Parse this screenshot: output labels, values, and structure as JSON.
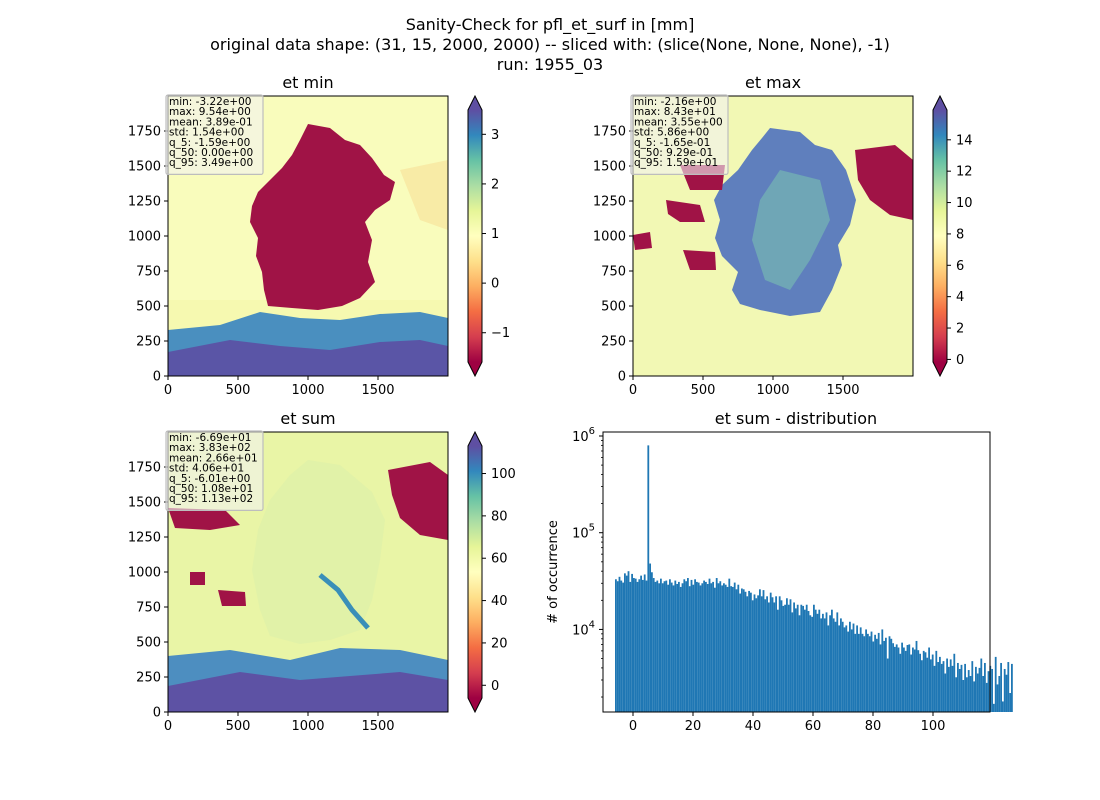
{
  "figure": {
    "suptitle_lines": [
      "Sanity-Check for pfl_et_surf in [mm]",
      "original data shape: (31, 15, 2000, 2000) -- sliced with: (slice(None, None, None), -1)",
      "run: 1955_03"
    ]
  },
  "colors": {
    "histogram_bar": "#1f77b4",
    "stats_box_bg": "#f2f2f2",
    "colormap": "Spectral",
    "colormap_stops": [
      "#9e0142",
      "#d53e4f",
      "#f46d43",
      "#fdae61",
      "#fee08b",
      "#ffffbf",
      "#e6f598",
      "#abdda4",
      "#66c2a5",
      "#3288bd",
      "#5e4fa2"
    ],
    "nan_color": "#ffffff"
  },
  "chart_data": [
    {
      "type": "heatmap",
      "title": "et min",
      "xlim": [
        0,
        2000
      ],
      "ylim": [
        0,
        2000
      ],
      "xticks": [
        0,
        500,
        1000,
        1500
      ],
      "yticks": [
        0,
        250,
        500,
        750,
        1000,
        1250,
        1500,
        1750
      ],
      "colorbar": {
        "vmin": -1.59,
        "vmax": 3.49,
        "ticks": [
          -1,
          0,
          1,
          2,
          3
        ],
        "extend": "both"
      },
      "stats": [
        "min: -3.22e+00",
        "max: 9.54e+00",
        "mean: 3.89e-01",
        "std: 1.54e+00",
        "q_5: -1.59e+00",
        "q_50: 0.00e+00",
        "q_95: 3.49e+00"
      ]
    },
    {
      "type": "heatmap",
      "title": "et max",
      "xlim": [
        0,
        2000
      ],
      "ylim": [
        0,
        2000
      ],
      "xticks": [
        0,
        500,
        1000,
        1500
      ],
      "yticks": [
        0,
        250,
        500,
        750,
        1000,
        1250,
        1500,
        1750
      ],
      "colorbar": {
        "vmin": -0.165,
        "vmax": 15.9,
        "ticks": [
          0,
          2,
          4,
          6,
          8,
          10,
          12,
          14
        ],
        "extend": "both"
      },
      "stats": [
        "min: -2.16e+00",
        "max: 8.43e+01",
        "mean: 3.55e+00",
        "std: 5.86e+00",
        "q_5: -1.65e-01",
        "q_50: 9.29e-01",
        "q_95: 1.59e+01"
      ]
    },
    {
      "type": "heatmap",
      "title": "et sum",
      "xlim": [
        0,
        2000
      ],
      "ylim": [
        0,
        2000
      ],
      "xticks": [
        0,
        500,
        1000,
        1500
      ],
      "yticks": [
        0,
        250,
        500,
        750,
        1000,
        1250,
        1500,
        1750
      ],
      "colorbar": {
        "vmin": -6.01,
        "vmax": 113,
        "ticks": [
          0,
          20,
          40,
          60,
          80,
          100
        ],
        "extend": "both"
      },
      "stats": [
        "min: -6.69e+01",
        "max: 3.83e+02",
        "mean: 2.66e+01",
        "std: 4.06e+01",
        "q_5: -6.01e+00",
        "q_50: 1.08e+01",
        "q_95: 1.13e+02"
      ]
    },
    {
      "type": "bar",
      "title": "et sum - distribution",
      "ylabel": "# of occurrence",
      "yscale": "log",
      "xlim": [
        -10,
        119
      ],
      "ylim": [
        1400,
        1100000
      ],
      "xticks": [
        0,
        20,
        40,
        60,
        80,
        100
      ],
      "yticks": [
        {
          "value": 10000,
          "base": "10",
          "exp": "4"
        },
        {
          "value": 100000,
          "base": "10",
          "exp": "5"
        },
        {
          "value": 1000000,
          "base": "10",
          "exp": "6"
        }
      ],
      "bin_start": -6,
      "bin_width": 0.6,
      "values": [
        33000,
        31500,
        35000,
        32000,
        30500,
        38000,
        36000,
        40000,
        31000,
        37500,
        34000,
        33500,
        31000,
        33000,
        36000,
        32500,
        37000,
        32000,
        800000,
        48000,
        39000,
        34000,
        31000,
        32000,
        30000,
        33500,
        30000,
        31500,
        32000,
        29000,
        33000,
        30500,
        28500,
        32000,
        29500,
        31000,
        27500,
        30000,
        33000,
        31500,
        34000,
        28000,
        32500,
        29000,
        33000,
        31000,
        30500,
        28500,
        30000,
        32000,
        31000,
        29500,
        33500,
        30000,
        31000,
        27000,
        34000,
        30000,
        31500,
        28500,
        30000,
        29000,
        27500,
        33500,
        28000,
        27500,
        30500,
        26000,
        29000,
        23500,
        26500,
        26000,
        24500,
        22000,
        25000,
        24000,
        20000,
        23000,
        21000,
        22500,
        26000,
        22000,
        25500,
        20500,
        22000,
        19000,
        24000,
        21500,
        19000,
        22000,
        16000,
        22000,
        20000,
        17500,
        18000,
        21000,
        18000,
        20500,
        15000,
        19000,
        16500,
        18000,
        14000,
        18000,
        17500,
        16000,
        18000,
        15500,
        14000,
        13500,
        18000,
        16000,
        14500,
        16000,
        13000,
        14500,
        13000,
        15000,
        11000,
        14000,
        16000,
        13000,
        12000,
        15000,
        11000,
        13000,
        12000,
        10500,
        11000,
        9500,
        12000,
        10000,
        11500,
        9000,
        11000,
        9000,
        10500,
        9000,
        8500,
        10000,
        9000,
        8500,
        9500,
        7500,
        8800,
        8000,
        9200,
        7000,
        10000,
        7600,
        8200,
        5000,
        8500,
        8000,
        7200,
        6600,
        7000,
        6500,
        5600,
        7300,
        6500,
        6000,
        6900,
        7000,
        5500,
        6500,
        6200,
        7600,
        6100,
        5600,
        4800,
        6000,
        5800,
        5100,
        6500,
        4900,
        5500,
        4200,
        6000,
        4600,
        5200,
        4400,
        4700,
        3500,
        5000,
        4100,
        4900,
        4200,
        5600,
        3200,
        4500,
        3900,
        4300,
        3000,
        4400,
        3200,
        3800,
        3300,
        4700,
        2900,
        4100,
        3500,
        4000,
        5000,
        3300,
        4500,
        2800,
        3700,
        4200,
        3900,
        1700,
        5200,
        2700,
        3300,
        4500,
        1800,
        3900,
        3400,
        4600,
        2200,
        4400
      ]
    }
  ]
}
